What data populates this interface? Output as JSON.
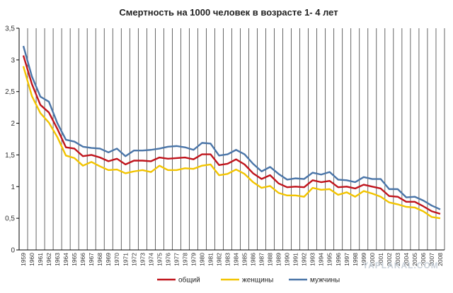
{
  "chart_data": {
    "type": "line",
    "title": "Смертность на 1000 человек в возрасте 1- 4 лет",
    "xlabel": "",
    "ylabel": "",
    "ylim": [
      0,
      3.5
    ],
    "yticks": [
      "0",
      "0,5",
      "1",
      "1,5",
      "2",
      "2,5",
      "3",
      "3,5"
    ],
    "grid": "vertical",
    "legend_position": "bottom",
    "x": [
      "1959",
      "1960",
      "1961",
      "1962",
      "1963",
      "1964",
      "1965",
      "1966",
      "1967",
      "1968",
      "1969",
      "1970",
      "1971",
      "1972",
      "1973",
      "1974",
      "1975",
      "1976",
      "1977",
      "1978",
      "1979",
      "1980",
      "1981",
      "1982",
      "1983",
      "1984",
      "1985",
      "1986",
      "1987",
      "1988",
      "1989",
      "1990",
      "1991",
      "1992",
      "1993",
      "1994",
      "1995",
      "1996",
      "1997",
      "1998",
      "1999",
      "2000",
      "2001",
      "2002",
      "2003",
      "2004",
      "2005",
      "2006",
      "2007",
      "2008"
    ],
    "series": [
      {
        "name": "общий",
        "color": "#c0141c",
        "values": [
          3.07,
          2.62,
          2.29,
          2.17,
          1.91,
          1.62,
          1.6,
          1.48,
          1.5,
          1.46,
          1.4,
          1.44,
          1.35,
          1.41,
          1.41,
          1.4,
          1.46,
          1.44,
          1.45,
          1.46,
          1.43,
          1.51,
          1.51,
          1.34,
          1.36,
          1.43,
          1.35,
          1.21,
          1.12,
          1.18,
          1.05,
          0.99,
          1.0,
          0.99,
          1.1,
          1.07,
          1.09,
          0.99,
          1.0,
          0.97,
          1.03,
          1.0,
          0.97,
          0.85,
          0.84,
          0.76,
          0.76,
          0.69,
          0.61,
          0.57
        ]
      },
      {
        "name": "женщины",
        "color": "#f2c400",
        "values": [
          2.9,
          2.43,
          2.16,
          2.01,
          1.78,
          1.49,
          1.45,
          1.33,
          1.39,
          1.32,
          1.26,
          1.27,
          1.21,
          1.24,
          1.26,
          1.23,
          1.33,
          1.26,
          1.26,
          1.29,
          1.28,
          1.33,
          1.35,
          1.18,
          1.2,
          1.27,
          1.2,
          1.07,
          0.98,
          1.01,
          0.9,
          0.86,
          0.86,
          0.84,
          0.98,
          0.95,
          0.96,
          0.87,
          0.91,
          0.84,
          0.93,
          0.89,
          0.84,
          0.75,
          0.72,
          0.68,
          0.67,
          0.61,
          0.52,
          0.5
        ]
      },
      {
        "name": "мужчины",
        "color": "#4a75a8",
        "values": [
          3.22,
          2.74,
          2.42,
          2.34,
          2.0,
          1.74,
          1.71,
          1.63,
          1.61,
          1.6,
          1.54,
          1.6,
          1.48,
          1.57,
          1.57,
          1.58,
          1.6,
          1.63,
          1.64,
          1.62,
          1.58,
          1.69,
          1.68,
          1.49,
          1.51,
          1.58,
          1.51,
          1.36,
          1.24,
          1.31,
          1.2,
          1.11,
          1.13,
          1.12,
          1.22,
          1.19,
          1.23,
          1.11,
          1.1,
          1.07,
          1.15,
          1.12,
          1.12,
          0.96,
          0.96,
          0.83,
          0.84,
          0.78,
          0.7,
          0.64
        ]
      }
    ]
  },
  "watermark": "YAPLAKAL.COM"
}
